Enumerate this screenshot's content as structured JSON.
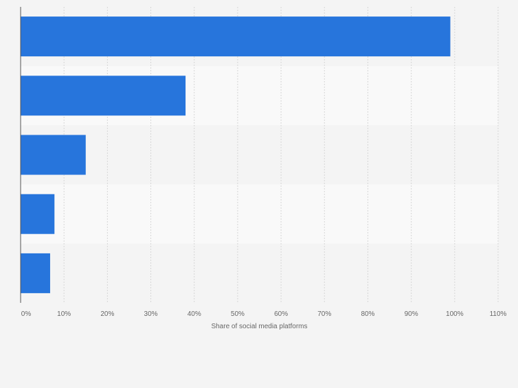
{
  "chart_data": {
    "type": "bar",
    "orientation": "horizontal",
    "categories": [
      "",
      "",
      "",
      "",
      ""
    ],
    "values": [
      99,
      38,
      15,
      7.8,
      6.8
    ],
    "xlabel": "Share of social media platforms",
    "ylabel": "",
    "xlim": [
      0,
      110
    ],
    "x_ticks": [
      "0%",
      "10%",
      "20%",
      "30%",
      "40%",
      "50%",
      "60%",
      "70%",
      "80%",
      "90%",
      "100%",
      "110%"
    ],
    "grid": true,
    "legend": "none",
    "colors": {
      "bar": "#2775dc",
      "background": "#f4f4f4",
      "band_light": "#f9f9f9",
      "band_dark": "#f4f4f4",
      "gridline": "#d6d6d6",
      "axis": "#555555"
    }
  }
}
